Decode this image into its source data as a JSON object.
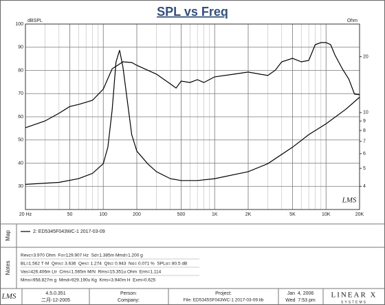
{
  "chart_data": {
    "type": "line",
    "title": "SPL vs Freq",
    "y_label": "dBSPL",
    "y2_label": "Ohm",
    "xlog": true,
    "y2log": true,
    "grid": true,
    "watermark": "LMS",
    "xlim": [
      20,
      20000
    ],
    "xticks": [
      {
        "value": 20,
        "label": "20 Hz"
      },
      50,
      100,
      200,
      500,
      {
        "value": 1000,
        "label": "1K"
      },
      {
        "value": 2000,
        "label": "2K"
      },
      {
        "value": 5000,
        "label": "5K"
      },
      {
        "value": 10000,
        "label": "10K"
      },
      {
        "value": 20000,
        "label": "20K"
      }
    ],
    "xminorticks": [
      30,
      40,
      60,
      70,
      80,
      90,
      300,
      400,
      600,
      700,
      800,
      900,
      3000,
      4000,
      6000,
      7000,
      8000,
      9000
    ],
    "ylim": [
      20,
      100
    ],
    "yticks": [
      30,
      40,
      50,
      60,
      70,
      80,
      90,
      100
    ],
    "y2lim": [
      3,
      30
    ],
    "y2ticks": [
      4,
      5,
      6,
      7,
      8,
      9,
      10,
      20
    ],
    "series": [
      {
        "name": "2: ED5345F043WC-1 2017-03-09",
        "color": "#000000",
        "x": [
          20,
          30,
          40,
          50,
          60,
          80,
          100,
          120,
          150,
          180,
          200,
          300,
          400,
          450,
          500,
          600,
          700,
          800,
          1000,
          1500,
          2000,
          3000,
          3500,
          4000,
          5000,
          6000,
          7000,
          8000,
          9000,
          10000,
          11000,
          12000,
          14000,
          16000,
          18000,
          20000
        ],
        "values": [
          55.3,
          58.2,
          61.5,
          64.4,
          65.3,
          67.1,
          71.9,
          80.7,
          83.7,
          83.4,
          82.2,
          78.4,
          74.2,
          72.4,
          75.4,
          74.8,
          76,
          74.8,
          77.2,
          78.4,
          79.3,
          77.8,
          80.1,
          83.7,
          85.2,
          83.7,
          84.3,
          91.1,
          92,
          92,
          91.1,
          86.7,
          80.7,
          76.3,
          69.8,
          69.5
        ]
      },
      {
        "color": "#000000",
        "axis": "y2",
        "x": [
          20,
          40,
          60,
          80,
          100,
          110,
          120,
          130,
          140,
          150,
          180,
          200,
          250,
          300,
          400,
          500,
          700,
          1000,
          2000,
          3000,
          5000,
          7000,
          10000,
          15000,
          20000
        ],
        "values": [
          4.1,
          4.2,
          4.4,
          4.7,
          5.3,
          6.5,
          10.3,
          18.7,
          21.7,
          17.6,
          7.6,
          6.2,
          5.3,
          4.8,
          4.4,
          4.3,
          4.3,
          4.4,
          4.8,
          5.3,
          6.5,
          7.6,
          8.7,
          10.4,
          12.1
        ]
      }
    ]
  },
  "panel": {
    "map_label": "Map",
    "notes_label": "Notes",
    "notes": [
      "Revc=3.970 Ohm  Fo=129.907 Hz  Sd=1.385m Mmd=1.200 g",
      "BL=1.562 T·M  Qms= 3.636  Qes= 1.274  Qts= 0.943  No= 0.071 %  SPLo= 80.5 dB",
      "Vas=426.406m Ltr  Cms=1.565m M/N  Rms=15.351u Ohm  Erm=1.114",
      "Mms=958.827m g  Mmd=929.190u Kg  Kms=3.940m H  Exm=0.625"
    ]
  },
  "footer": {
    "logo": "LMS",
    "version": "4.5.0.351",
    "build_date": "二月-12-2005",
    "person": "Person:",
    "company": "Company:",
    "project": "Project:",
    "file": "File: ED5345SF043WC-1 2017-03-09.lib",
    "date": "Jan  4, 2006",
    "time": "Wed  7:53 pm",
    "brand": "LINEAR X",
    "brand_sub": "SYSTEMS"
  }
}
